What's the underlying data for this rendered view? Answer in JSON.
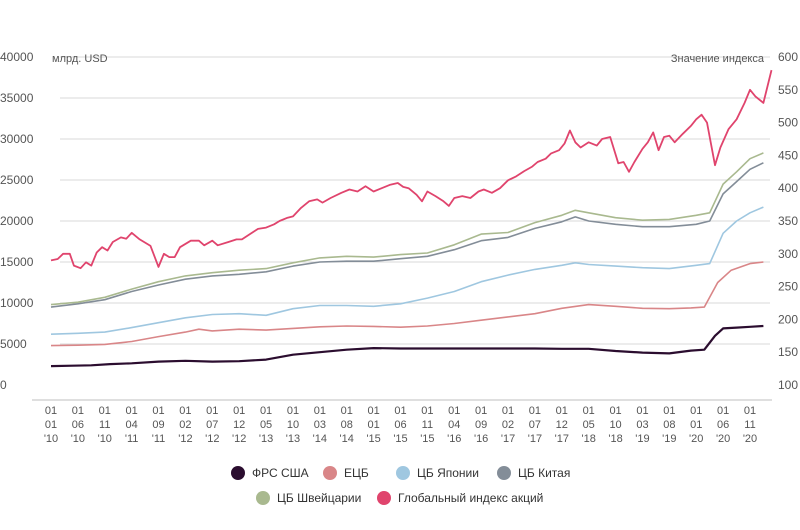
{
  "chart_data": {
    "type": "line",
    "left_axis": {
      "unit_label": "млрд. USD",
      "ylim": [
        0,
        40000
      ],
      "ticks": [
        "0",
        "5000",
        "10000",
        "15000",
        "20000",
        "25000",
        "30000",
        "35000",
        "40000"
      ]
    },
    "right_axis": {
      "unit_label": "Значение индекса",
      "ylim": [
        100,
        600
      ],
      "ticks": [
        "100",
        "150",
        "200",
        "250",
        "300",
        "350",
        "400",
        "450",
        "500",
        "550",
        "600"
      ]
    },
    "x_labels": [
      [
        "01",
        "01",
        "'10"
      ],
      [
        "01",
        "06",
        "'10"
      ],
      [
        "01",
        "11",
        "'10"
      ],
      [
        "01",
        "04",
        "'11"
      ],
      [
        "01",
        "09",
        "'11"
      ],
      [
        "01",
        "02",
        "'12"
      ],
      [
        "01",
        "07",
        "'12"
      ],
      [
        "01",
        "12",
        "'12"
      ],
      [
        "01",
        "05",
        "'13"
      ],
      [
        "01",
        "10",
        "'13"
      ],
      [
        "01",
        "03",
        "'14"
      ],
      [
        "01",
        "08",
        "'14"
      ],
      [
        "01",
        "01",
        "'15"
      ],
      [
        "01",
        "06",
        "'15"
      ],
      [
        "01",
        "11",
        "'15"
      ],
      [
        "01",
        "04",
        "'16"
      ],
      [
        "01",
        "09",
        "'16"
      ],
      [
        "01",
        "02",
        "'17"
      ],
      [
        "01",
        "07",
        "'17"
      ],
      [
        "01",
        "12",
        "'17"
      ],
      [
        "01",
        "05",
        "'18"
      ],
      [
        "01",
        "10",
        "'18"
      ],
      [
        "01",
        "03",
        "'19"
      ],
      [
        "01",
        "08",
        "'19"
      ],
      [
        "01",
        "01",
        "'20"
      ],
      [
        "01",
        "06",
        "'20"
      ],
      [
        "01",
        "11",
        "'20"
      ]
    ],
    "grid": "horizontal",
    "legend_position": "bottom",
    "series": [
      {
        "name": "ФРС США",
        "color": "#2b0d2f",
        "axis": "left",
        "width": 2.2,
        "points": [
          [
            0,
            2300
          ],
          [
            0.8,
            2350
          ],
          [
            1.5,
            2400
          ],
          [
            2.2,
            2550
          ],
          [
            3,
            2650
          ],
          [
            4,
            2850
          ],
          [
            5,
            2950
          ],
          [
            6,
            2850
          ],
          [
            7,
            2900
          ],
          [
            8,
            3100
          ],
          [
            9,
            3700
          ],
          [
            10,
            4000
          ],
          [
            11,
            4300
          ],
          [
            12,
            4500
          ],
          [
            13,
            4450
          ],
          [
            14,
            4450
          ],
          [
            15,
            4450
          ],
          [
            16,
            4450
          ],
          [
            17,
            4450
          ],
          [
            18,
            4450
          ],
          [
            19,
            4420
          ],
          [
            20,
            4420
          ],
          [
            21,
            4150
          ],
          [
            22,
            3950
          ],
          [
            23,
            3850
          ],
          [
            23.8,
            4200
          ],
          [
            24.3,
            4300
          ],
          [
            24.7,
            6000
          ],
          [
            25,
            6900
          ],
          [
            25.5,
            7000
          ],
          [
            26,
            7100
          ],
          [
            26.5,
            7200
          ]
        ]
      },
      {
        "name": "ЕЦБ",
        "color": "#d98688",
        "axis": "left",
        "width": 1.6,
        "points": [
          [
            0,
            4800
          ],
          [
            1,
            4850
          ],
          [
            2,
            4950
          ],
          [
            3,
            5300
          ],
          [
            4,
            5900
          ],
          [
            5,
            6450
          ],
          [
            5.5,
            6800
          ],
          [
            6,
            6600
          ],
          [
            7,
            6800
          ],
          [
            8,
            6700
          ],
          [
            9,
            6900
          ],
          [
            10,
            7100
          ],
          [
            11,
            7200
          ],
          [
            12,
            7150
          ],
          [
            13,
            7050
          ],
          [
            14,
            7200
          ],
          [
            15,
            7500
          ],
          [
            16,
            7900
          ],
          [
            17,
            8300
          ],
          [
            18,
            8700
          ],
          [
            19,
            9350
          ],
          [
            20,
            9800
          ],
          [
            21,
            9600
          ],
          [
            22,
            9350
          ],
          [
            23,
            9300
          ],
          [
            23.8,
            9400
          ],
          [
            24.3,
            9500
          ],
          [
            24.8,
            12500
          ],
          [
            25.3,
            14000
          ],
          [
            26,
            14800
          ],
          [
            26.5,
            15000
          ]
        ]
      },
      {
        "name": "ЦБ Японии",
        "color": "#9fc7e0",
        "axis": "left",
        "width": 1.6,
        "points": [
          [
            0,
            6200
          ],
          [
            1,
            6300
          ],
          [
            2,
            6450
          ],
          [
            3,
            7000
          ],
          [
            4,
            7600
          ],
          [
            5,
            8200
          ],
          [
            6,
            8600
          ],
          [
            7,
            8700
          ],
          [
            8,
            8500
          ],
          [
            9,
            9300
          ],
          [
            10,
            9700
          ],
          [
            11,
            9700
          ],
          [
            12,
            9600
          ],
          [
            13,
            9900
          ],
          [
            14,
            10600
          ],
          [
            15,
            11400
          ],
          [
            16,
            12600
          ],
          [
            17,
            13400
          ],
          [
            18,
            14100
          ],
          [
            19,
            14600
          ],
          [
            19.5,
            14900
          ],
          [
            20,
            14700
          ],
          [
            21,
            14500
          ],
          [
            22,
            14300
          ],
          [
            23,
            14200
          ],
          [
            24,
            14600
          ],
          [
            24.5,
            14800
          ],
          [
            25,
            18500
          ],
          [
            25.5,
            20000
          ],
          [
            26,
            21000
          ],
          [
            26.5,
            21700
          ]
        ]
      },
      {
        "name": "ЦБ Китая",
        "color": "#838d98",
        "axis": "left",
        "width": 1.6,
        "points": [
          [
            0,
            9500
          ],
          [
            1,
            9900
          ],
          [
            2,
            10400
          ],
          [
            3,
            11400
          ],
          [
            4,
            12200
          ],
          [
            5,
            12900
          ],
          [
            6,
            13300
          ],
          [
            7,
            13500
          ],
          [
            8,
            13800
          ],
          [
            9,
            14500
          ],
          [
            10,
            15000
          ],
          [
            11,
            15100
          ],
          [
            12,
            15100
          ],
          [
            13,
            15400
          ],
          [
            14,
            15700
          ],
          [
            15,
            16500
          ],
          [
            16,
            17600
          ],
          [
            17,
            18000
          ],
          [
            18,
            19100
          ],
          [
            19,
            19900
          ],
          [
            19.5,
            20500
          ],
          [
            20,
            20000
          ],
          [
            21,
            19600
          ],
          [
            22,
            19300
          ],
          [
            23,
            19300
          ],
          [
            24,
            19600
          ],
          [
            24.5,
            20000
          ],
          [
            25,
            23300
          ],
          [
            25.5,
            24800
          ],
          [
            26,
            26300
          ],
          [
            26.5,
            27100
          ]
        ]
      },
      {
        "name": "ЦБ Швейцарии",
        "color": "#a9b98f",
        "axis": "left",
        "width": 1.6,
        "points": [
          [
            0,
            9800
          ],
          [
            1,
            10100
          ],
          [
            2,
            10700
          ],
          [
            3,
            11700
          ],
          [
            4,
            12600
          ],
          [
            5,
            13300
          ],
          [
            6,
            13700
          ],
          [
            7,
            14000
          ],
          [
            8,
            14200
          ],
          [
            9,
            14900
          ],
          [
            10,
            15500
          ],
          [
            11,
            15700
          ],
          [
            12,
            15600
          ],
          [
            13,
            15900
          ],
          [
            14,
            16100
          ],
          [
            15,
            17100
          ],
          [
            16,
            18400
          ],
          [
            17,
            18600
          ],
          [
            18,
            19800
          ],
          [
            19,
            20700
          ],
          [
            19.5,
            21300
          ],
          [
            20,
            21000
          ],
          [
            21,
            20400
          ],
          [
            22,
            20100
          ],
          [
            23,
            20200
          ],
          [
            24,
            20700
          ],
          [
            24.5,
            21000
          ],
          [
            25,
            24500
          ],
          [
            25.5,
            26000
          ],
          [
            26,
            27600
          ],
          [
            26.5,
            28300
          ]
        ]
      },
      {
        "name": "Глобальный индекс акций",
        "color": "#e0446d",
        "axis": "right",
        "width": 1.8,
        "points": [
          [
            0,
            290
          ],
          [
            0.25,
            292
          ],
          [
            0.45,
            300
          ],
          [
            0.7,
            300
          ],
          [
            0.85,
            282
          ],
          [
            1.1,
            278
          ],
          [
            1.3,
            287
          ],
          [
            1.5,
            282
          ],
          [
            1.7,
            302
          ],
          [
            1.9,
            310
          ],
          [
            2.1,
            305
          ],
          [
            2.3,
            318
          ],
          [
            2.6,
            325
          ],
          [
            2.8,
            323
          ],
          [
            3,
            332
          ],
          [
            3.3,
            322
          ],
          [
            3.7,
            312
          ],
          [
            4,
            280
          ],
          [
            4.2,
            300
          ],
          [
            4.4,
            295
          ],
          [
            4.6,
            295
          ],
          [
            4.8,
            310
          ],
          [
            5.2,
            320
          ],
          [
            5.5,
            320
          ],
          [
            5.7,
            313
          ],
          [
            6,
            320
          ],
          [
            6.2,
            313
          ],
          [
            6.6,
            318
          ],
          [
            6.9,
            322
          ],
          [
            7.1,
            322
          ],
          [
            7.4,
            330
          ],
          [
            7.7,
            338
          ],
          [
            8,
            340
          ],
          [
            8.3,
            345
          ],
          [
            8.5,
            350
          ],
          [
            8.8,
            355
          ],
          [
            9,
            357
          ],
          [
            9.3,
            370
          ],
          [
            9.6,
            380
          ],
          [
            9.9,
            383
          ],
          [
            10.1,
            378
          ],
          [
            10.4,
            385
          ],
          [
            10.8,
            393
          ],
          [
            11.1,
            398
          ],
          [
            11.4,
            395
          ],
          [
            11.7,
            403
          ],
          [
            12,
            395
          ],
          [
            12.3,
            400
          ],
          [
            12.6,
            405
          ],
          [
            12.9,
            408
          ],
          [
            13.1,
            402
          ],
          [
            13.3,
            400
          ],
          [
            13.6,
            390
          ],
          [
            13.8,
            380
          ],
          [
            14,
            395
          ],
          [
            14.3,
            388
          ],
          [
            14.6,
            380
          ],
          [
            14.8,
            373
          ],
          [
            15,
            385
          ],
          [
            15.3,
            388
          ],
          [
            15.6,
            385
          ],
          [
            15.9,
            395
          ],
          [
            16.1,
            398
          ],
          [
            16.4,
            393
          ],
          [
            16.7,
            400
          ],
          [
            17,
            412
          ],
          [
            17.3,
            418
          ],
          [
            17.6,
            426
          ],
          [
            17.9,
            433
          ],
          [
            18.1,
            440
          ],
          [
            18.4,
            445
          ],
          [
            18.6,
            453
          ],
          [
            18.9,
            458
          ],
          [
            19.1,
            468
          ],
          [
            19.3,
            488
          ],
          [
            19.5,
            470
          ],
          [
            19.7,
            462
          ],
          [
            20,
            470
          ],
          [
            20.3,
            465
          ],
          [
            20.5,
            475
          ],
          [
            20.8,
            478
          ],
          [
            21.1,
            438
          ],
          [
            21.3,
            440
          ],
          [
            21.5,
            425
          ],
          [
            21.7,
            440
          ],
          [
            22,
            460
          ],
          [
            22.2,
            470
          ],
          [
            22.4,
            485
          ],
          [
            22.6,
            458
          ],
          [
            22.8,
            478
          ],
          [
            23,
            480
          ],
          [
            23.2,
            470
          ],
          [
            23.5,
            483
          ],
          [
            23.8,
            495
          ],
          [
            24,
            505
          ],
          [
            24.2,
            512
          ],
          [
            24.4,
            500
          ],
          [
            24.7,
            435
          ],
          [
            24.9,
            462
          ],
          [
            25.2,
            490
          ],
          [
            25.5,
            505
          ],
          [
            25.8,
            530
          ],
          [
            26,
            550
          ],
          [
            26.2,
            540
          ],
          [
            26.5,
            530
          ],
          [
            26.8,
            580
          ]
        ]
      }
    ]
  }
}
